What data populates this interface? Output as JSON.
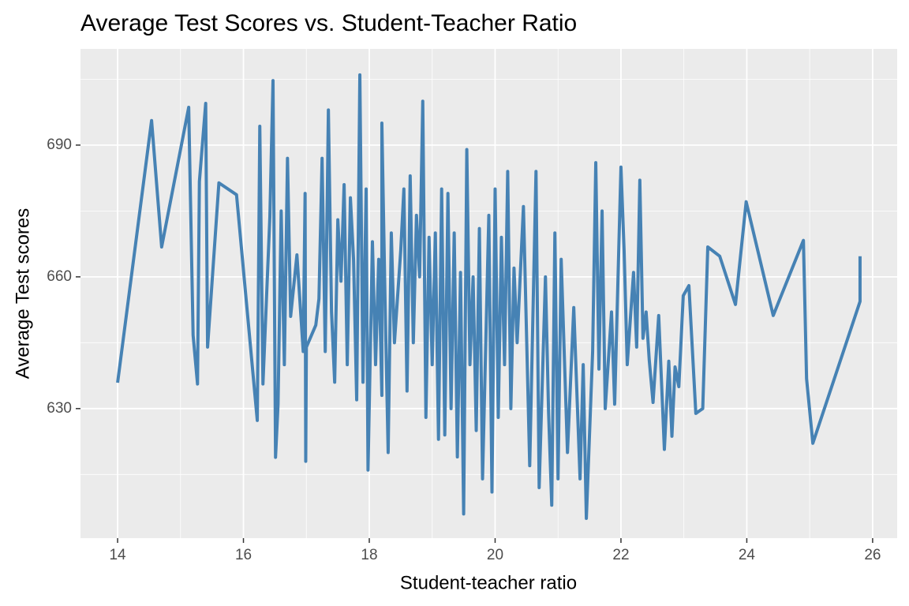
{
  "chart_data": {
    "type": "line",
    "title": "Average Test Scores vs. Student-Teacher Ratio",
    "x_label": "Student-teacher ratio",
    "y_label": "Average Test scores",
    "color": "#4682b4",
    "grid": true,
    "xlim": [
      13.41,
      26.39
    ],
    "ylim": [
      600.5,
      711.9
    ],
    "xticks": [
      14,
      16,
      18,
      20,
      22,
      24,
      26
    ],
    "yticks": [
      630,
      660,
      690
    ],
    "x_minor_grid": [
      15,
      17,
      19,
      21,
      23,
      25
    ],
    "y_minor_grid": [
      615,
      645,
      675,
      705
    ],
    "x": [
      14,
      14.54,
      14.7,
      15.13,
      15.2,
      15.27,
      15.3,
      15.4,
      15.43,
      15.61,
      15.89,
      16.22,
      16.26,
      16.31,
      16.42,
      16.47,
      16.51,
      16.55,
      16.6,
      16.65,
      16.7,
      16.75,
      16.85,
      16.95,
      16.98,
      16.99,
      17.0,
      17.15,
      17.2,
      17.25,
      17.3,
      17.35,
      17.4,
      17.45,
      17.5,
      17.55,
      17.6,
      17.65,
      17.7,
      17.75,
      17.8,
      17.85,
      17.9,
      17.95,
      17.98,
      18.05,
      18.1,
      18.15,
      18.2,
      18.2,
      18.25,
      18.3,
      18.35,
      18.4,
      18.5,
      18.55,
      18.6,
      18.65,
      18.7,
      18.75,
      18.8,
      18.85,
      18.9,
      18.95,
      19.0,
      19.05,
      19.1,
      19.15,
      19.2,
      19.25,
      19.3,
      19.35,
      19.4,
      19.45,
      19.5,
      19.55,
      19.6,
      19.65,
      19.7,
      19.75,
      19.8,
      19.9,
      19.95,
      20.0,
      20.05,
      20.1,
      20.15,
      20.2,
      20.25,
      20.3,
      20.35,
      20.45,
      20.55,
      20.65,
      20.7,
      20.8,
      20.85,
      20.9,
      20.95,
      21.0,
      21.05,
      21.15,
      21.25,
      21.35,
      21.4,
      21.45,
      21.55,
      21.6,
      21.65,
      21.7,
      21.75,
      21.85,
      21.9,
      22.0,
      22.05,
      22.1,
      22.2,
      22.25,
      22.3,
      22.35,
      22.4,
      22.45,
      22.51,
      22.6,
      22.69,
      22.76,
      22.81,
      22.86,
      22.92,
      22.99,
      23.08,
      23.19,
      23.3,
      23.38,
      23.57,
      23.82,
      23.99,
      24.42,
      24.9,
      24.95,
      25.05,
      25.8,
      25.8
    ],
    "values": [
      635.9,
      695.6,
      666.8,
      698.6,
      646.7,
      635.6,
      681.7,
      699.5,
      644,
      681.4,
      678.7,
      627.3,
      694.3,
      635.6,
      673.7,
      704.7,
      618.9,
      631,
      675,
      640,
      687,
      651,
      665,
      643,
      679,
      618,
      644,
      649,
      655,
      687,
      643,
      698,
      652,
      636,
      673,
      659,
      681,
      640,
      678,
      664,
      632,
      706,
      636,
      680,
      616,
      668,
      640,
      664,
      633,
      695,
      655,
      620,
      670,
      645,
      666,
      680,
      634,
      683,
      645,
      674,
      660,
      700,
      628,
      669,
      640,
      670,
      623,
      680,
      624,
      679,
      630,
      670,
      619,
      661,
      606,
      689,
      640,
      660,
      625,
      671,
      614,
      674,
      611,
      680,
      628,
      669,
      640,
      684,
      630,
      662,
      645,
      676,
      617,
      684,
      612,
      660,
      629,
      608,
      670,
      614,
      664,
      620,
      653,
      614,
      640,
      605,
      643,
      686,
      639,
      675,
      630,
      652,
      631,
      685,
      666,
      640,
      661,
      644,
      682,
      646,
      652,
      641,
      631.4,
      651.2,
      620.7,
      640.8,
      623.7,
      639.5,
      635,
      655.7,
      658,
      628.9,
      630,
      666.8,
      664.7,
      653.7,
      677.1,
      651.2,
      668.3,
      636.8,
      622.1,
      654.4,
      664.7
    ]
  }
}
